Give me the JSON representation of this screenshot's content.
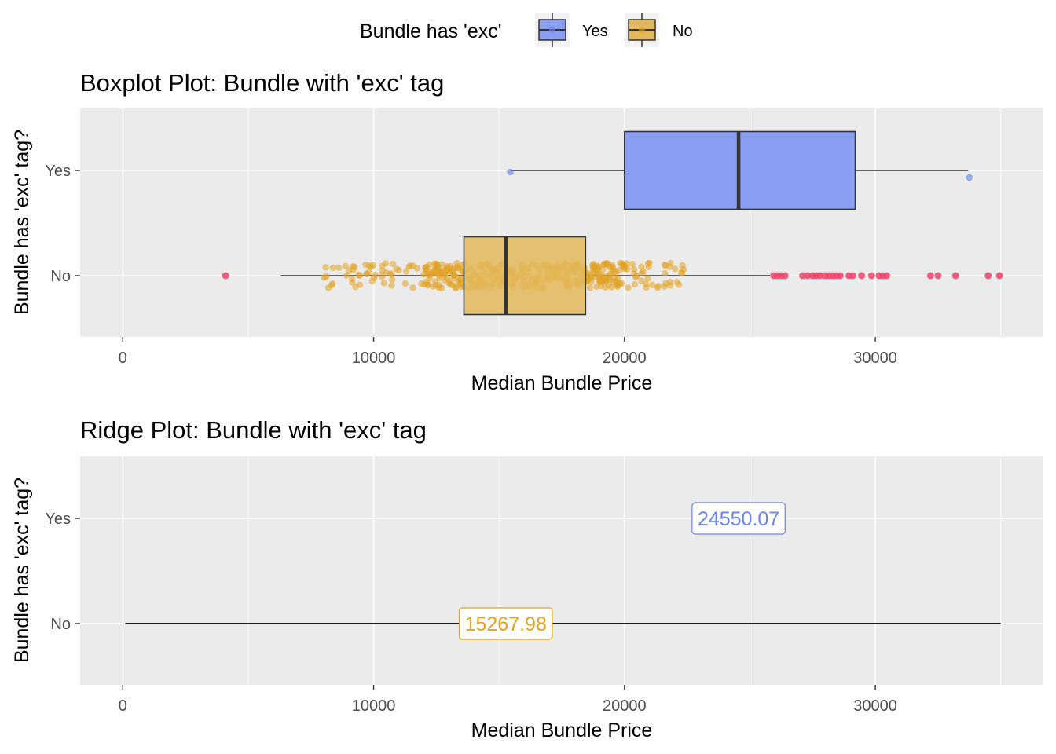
{
  "legend": {
    "title": "Bundle has 'exc'",
    "items": [
      {
        "label": "Yes",
        "color": "#6a85ee"
      },
      {
        "label": "No",
        "color": "#e1a224"
      }
    ]
  },
  "colors": {
    "yes_fill": "#8a9ff2",
    "no_fill": "#e3b85a",
    "yes_point": "#6a85ee",
    "no_point": "#e1a224",
    "outlier": "#f0426a",
    "panel": "#ebebeb",
    "grid": "#ffffff"
  },
  "chart_data": [
    {
      "type": "boxplot",
      "title": "Boxplot Plot: Bundle with 'exc' tag",
      "xlabel": "Median Bundle Price",
      "ylabel": "Bundle has 'exc' tag?",
      "xlim": [
        -1700,
        36700
      ],
      "xticks": [
        0,
        10000,
        20000,
        30000
      ],
      "categories": [
        "Yes",
        "No"
      ],
      "series": [
        {
          "name": "Yes",
          "whisker_low": 15450,
          "q1": 20000,
          "median": 24550,
          "q3": 29200,
          "whisker_high": 33700,
          "points": [
            15450,
            33750
          ],
          "outliers": []
        },
        {
          "name": "No",
          "whisker_low": 6300,
          "q1": 13600,
          "median": 15270,
          "q3": 18450,
          "whisker_high": 25800,
          "points": [],
          "outliers": [
            4100,
            25950,
            26100,
            26250,
            26400,
            27100,
            27300,
            27500,
            27650,
            27800,
            28000,
            28150,
            28300,
            28450,
            28600,
            28950,
            29100,
            29450,
            29850,
            30150,
            30300,
            30450,
            32200,
            32500,
            33200,
            34500,
            34950
          ]
        }
      ]
    },
    {
      "type": "ridge",
      "title": "Ridge Plot: Bundle with 'exc' tag",
      "xlabel": "Median Bundle Price",
      "ylabel": "Bundle has 'exc' tag?",
      "xlim": [
        -1700,
        36700
      ],
      "xticks": [
        0,
        10000,
        20000,
        30000
      ],
      "categories": [
        "Yes",
        "No"
      ],
      "series": [
        {
          "name": "Yes",
          "range": null,
          "median_label": "24550.07",
          "median": 24550.07
        },
        {
          "name": "No",
          "range": [
            100,
            35000
          ],
          "median_label": "15267.98",
          "median": 15267.98
        }
      ]
    }
  ]
}
